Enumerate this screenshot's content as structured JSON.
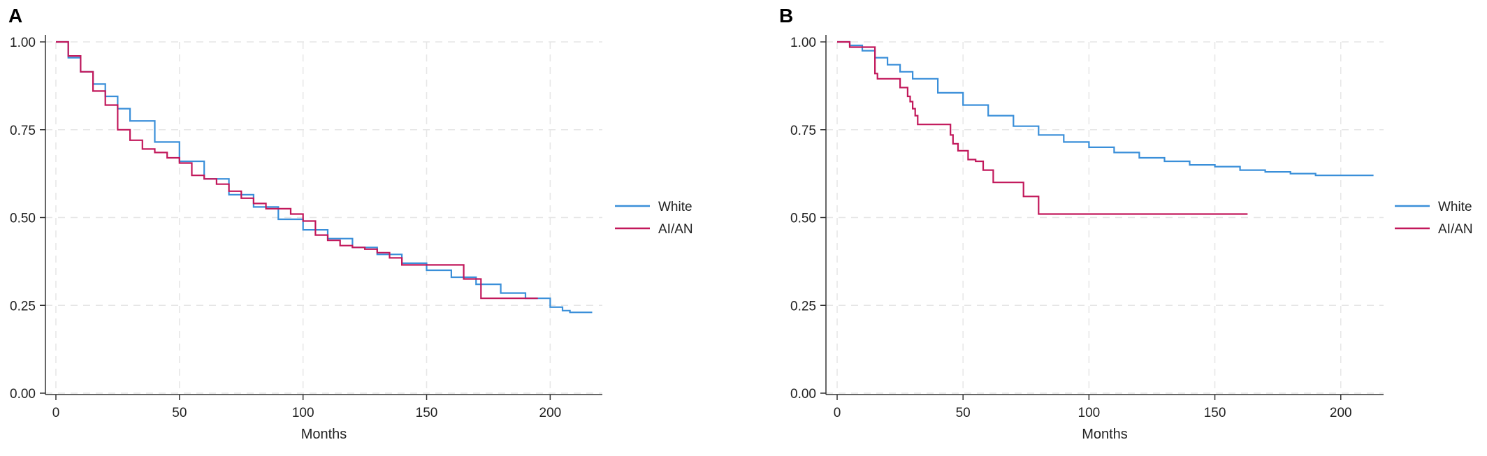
{
  "chart_data": [
    {
      "type": "line",
      "panel_label": "A",
      "title": "",
      "xlabel": "Months",
      "ylabel": "",
      "xlim": [
        0,
        220
      ],
      "ylim": [
        0,
        1
      ],
      "xticks": [
        "0",
        "50",
        "100",
        "150",
        "200"
      ],
      "yticks": [
        "0.00",
        "0.25",
        "0.50",
        "0.75",
        "1.00"
      ],
      "grid": true,
      "legend_position": "right",
      "series": [
        {
          "name": "White",
          "color": "#3a8fd9",
          "x": [
            0,
            5,
            10,
            15,
            20,
            25,
            30,
            40,
            50,
            60,
            70,
            80,
            90,
            100,
            110,
            120,
            130,
            140,
            150,
            160,
            170,
            180,
            190,
            200,
            205,
            208,
            217
          ],
          "y": [
            1.0,
            0.955,
            0.915,
            0.88,
            0.845,
            0.81,
            0.775,
            0.715,
            0.66,
            0.61,
            0.565,
            0.53,
            0.495,
            0.465,
            0.44,
            0.415,
            0.395,
            0.37,
            0.35,
            0.33,
            0.31,
            0.285,
            0.27,
            0.245,
            0.235,
            0.23,
            0.23
          ]
        },
        {
          "name": "AI/AN",
          "color": "#c2185b",
          "x": [
            0,
            5,
            10,
            15,
            20,
            25,
            30,
            35,
            40,
            45,
            50,
            55,
            60,
            65,
            70,
            75,
            80,
            85,
            90,
            95,
            100,
            105,
            110,
            115,
            120,
            125,
            130,
            135,
            140,
            145,
            150,
            155,
            160,
            165,
            172,
            180,
            195
          ],
          "y": [
            1.0,
            0.96,
            0.915,
            0.86,
            0.82,
            0.75,
            0.72,
            0.695,
            0.685,
            0.67,
            0.655,
            0.62,
            0.61,
            0.595,
            0.575,
            0.555,
            0.54,
            0.525,
            0.525,
            0.51,
            0.49,
            0.45,
            0.435,
            0.42,
            0.415,
            0.41,
            0.4,
            0.385,
            0.365,
            0.365,
            0.365,
            0.365,
            0.365,
            0.325,
            0.27,
            0.27,
            0.27
          ]
        }
      ]
    },
    {
      "type": "line",
      "panel_label": "B",
      "title": "",
      "xlabel": "Months",
      "ylabel": "",
      "xlim": [
        0,
        217
      ],
      "ylim": [
        0,
        1
      ],
      "xticks": [
        "0",
        "50",
        "100",
        "150",
        "200"
      ],
      "yticks": [
        "0.00",
        "0.25",
        "0.50",
        "0.75",
        "1.00"
      ],
      "grid": true,
      "legend_position": "right",
      "series": [
        {
          "name": "White",
          "color": "#3a8fd9",
          "x": [
            0,
            5,
            10,
            15,
            20,
            25,
            30,
            40,
            50,
            60,
            70,
            80,
            90,
            100,
            110,
            120,
            130,
            140,
            150,
            160,
            170,
            180,
            190,
            200,
            213
          ],
          "y": [
            1.0,
            0.99,
            0.975,
            0.955,
            0.935,
            0.915,
            0.895,
            0.855,
            0.82,
            0.79,
            0.76,
            0.735,
            0.715,
            0.7,
            0.685,
            0.67,
            0.66,
            0.65,
            0.645,
            0.635,
            0.63,
            0.625,
            0.62,
            0.62,
            0.62
          ]
        },
        {
          "name": "AI/AN",
          "color": "#c2185b",
          "x": [
            0,
            5,
            10,
            15,
            16,
            17,
            25,
            28,
            29,
            30,
            31,
            32,
            35,
            45,
            46,
            48,
            52,
            55,
            58,
            62,
            65,
            70,
            74,
            78,
            80,
            100,
            130,
            163
          ],
          "y": [
            1.0,
            0.985,
            0.985,
            0.91,
            0.895,
            0.895,
            0.87,
            0.845,
            0.83,
            0.81,
            0.79,
            0.765,
            0.765,
            0.735,
            0.71,
            0.69,
            0.665,
            0.66,
            0.635,
            0.6,
            0.6,
            0.6,
            0.56,
            0.56,
            0.51,
            0.51,
            0.51,
            0.51
          ]
        }
      ]
    }
  ]
}
